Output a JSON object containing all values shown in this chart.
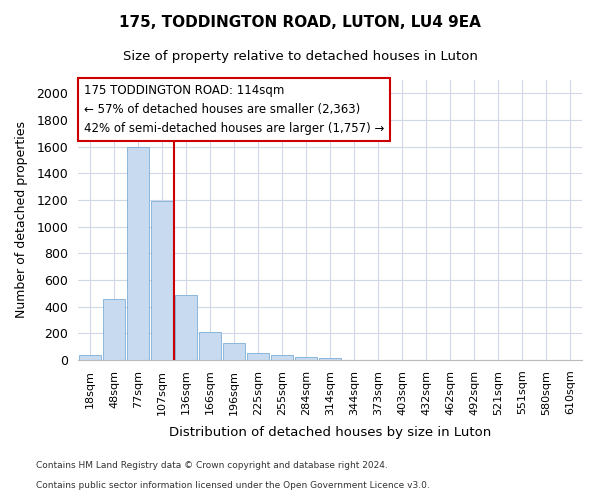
{
  "title_line1": "175, TODDINGTON ROAD, LUTON, LU4 9EA",
  "title_line2": "Size of property relative to detached houses in Luton",
  "xlabel": "Distribution of detached houses by size in Luton",
  "ylabel": "Number of detached properties",
  "footer_line1": "Contains HM Land Registry data © Crown copyright and database right 2024.",
  "footer_line2": "Contains public sector information licensed under the Open Government Licence v3.0.",
  "bar_labels": [
    "18sqm",
    "48sqm",
    "77sqm",
    "107sqm",
    "136sqm",
    "166sqm",
    "196sqm",
    "225sqm",
    "255sqm",
    "284sqm",
    "314sqm",
    "344sqm",
    "373sqm",
    "403sqm",
    "432sqm",
    "462sqm",
    "492sqm",
    "521sqm",
    "551sqm",
    "580sqm",
    "610sqm"
  ],
  "bar_values": [
    35,
    455,
    1600,
    1195,
    490,
    210,
    130,
    50,
    40,
    25,
    15,
    2,
    1,
    0,
    0,
    0,
    0,
    0,
    0,
    0,
    0
  ],
  "bar_color": "#c8daf0",
  "bar_edgecolor": "#7aaed6",
  "ylim": [
    0,
    2100
  ],
  "yticks": [
    0,
    200,
    400,
    600,
    800,
    1000,
    1200,
    1400,
    1600,
    1800,
    2000
  ],
  "vline_color": "#cc0000",
  "vline_x": 3.5,
  "annotation_line1": "175 TODDINGTON ROAD: 114sqm",
  "annotation_line2": "← 57% of detached houses are smaller (2,363)",
  "annotation_line3": "42% of semi-detached houses are larger (1,757) →",
  "annotation_box_edgecolor": "#cc0000",
  "grid_color": "#d0d8e8",
  "fig_bg": "#ffffff",
  "bar_width": 0.9
}
